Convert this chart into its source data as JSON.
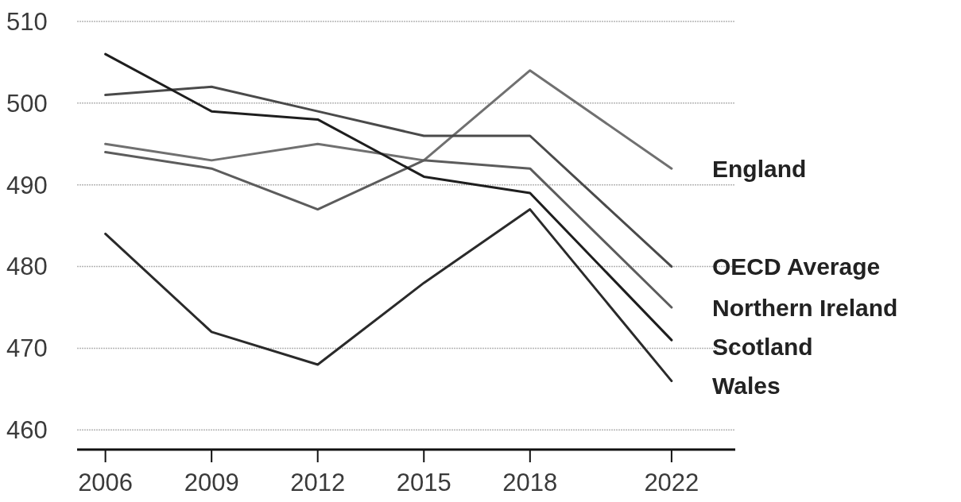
{
  "chart_data": {
    "type": "line",
    "x": [
      2006,
      2009,
      2012,
      2015,
      2018,
      2022
    ],
    "xlim": [
      2005.2,
      2023.8
    ],
    "xticks": [
      2006,
      2009,
      2012,
      2015,
      2018,
      2022
    ],
    "ylim": [
      457.6,
      510
    ],
    "yticks": [
      460,
      470,
      480,
      490,
      500,
      510
    ],
    "grid": "y",
    "series": [
      {
        "name": "England",
        "color": "#707070",
        "values": [
          495,
          493,
          495,
          493,
          504,
          492
        ]
      },
      {
        "name": "OECD Average",
        "color": "#4a4a4a",
        "values": [
          501,
          502,
          499,
          496,
          496,
          480
        ]
      },
      {
        "name": "Northern Ireland",
        "color": "#5c5c5c",
        "values": [
          494,
          492,
          487,
          493,
          492,
          475
        ]
      },
      {
        "name": "Scotland",
        "color": "#1e1e1e",
        "values": [
          506,
          499,
          498,
          491,
          489,
          471
        ]
      },
      {
        "name": "Wales",
        "color": "#2a2a2a",
        "values": [
          484,
          472,
          468,
          478,
          487,
          466
        ]
      }
    ]
  }
}
